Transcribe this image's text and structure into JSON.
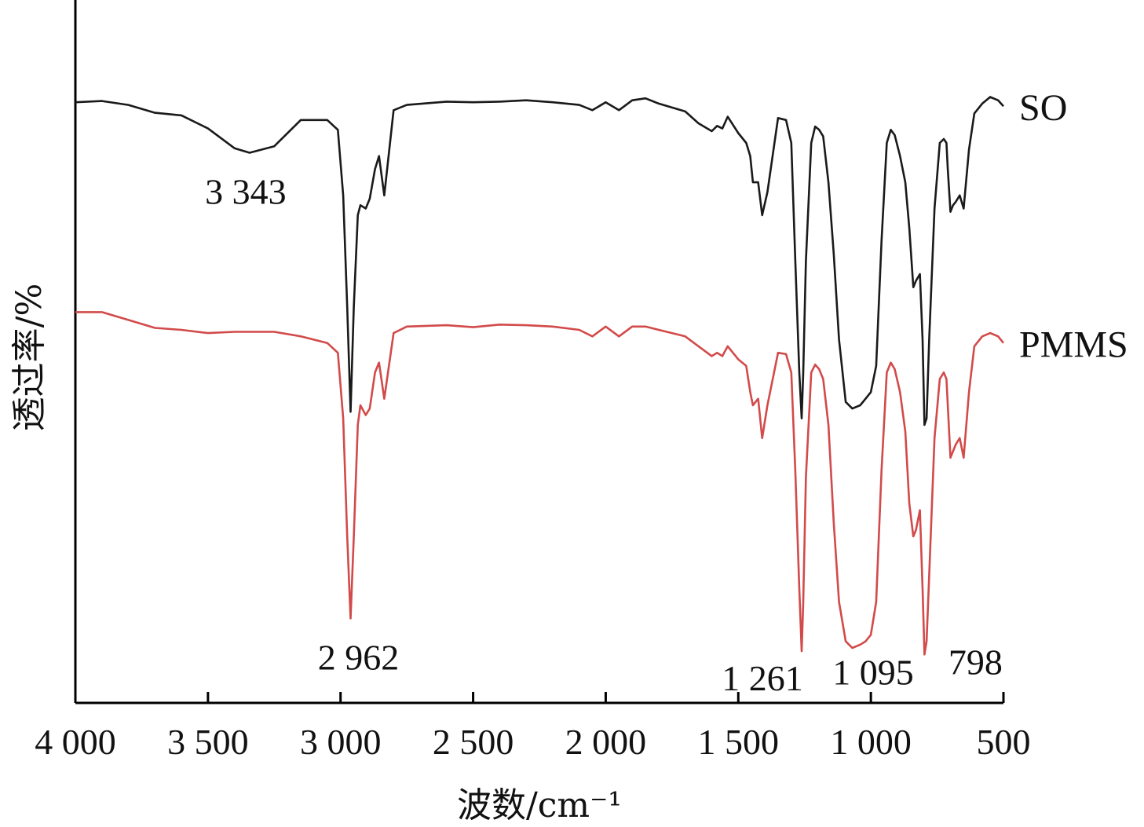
{
  "chart_data": {
    "type": "line",
    "xlabel": "波数/cm⁻¹",
    "ylabel": "透过率/%",
    "xlim": [
      4000,
      500
    ],
    "ylim": [
      0,
      1
    ],
    "x_reversed": true,
    "grid": false,
    "x_ticks": [
      4000,
      3500,
      3000,
      2500,
      2000,
      1500,
      1000,
      500
    ],
    "x_tick_labels": [
      "4 000",
      "3 500",
      "3 000",
      "2 500",
      "2 000",
      "1 500",
      "1 000",
      "500"
    ],
    "series": [
      {
        "name": "SO",
        "color": "#1a1a1a",
        "x": [
          4000,
          3900,
          3800,
          3700,
          3600,
          3500,
          3400,
          3343,
          3250,
          3150,
          3050,
          3010,
          2990,
          2975,
          2962,
          2950,
          2935,
          2925,
          2905,
          2890,
          2870,
          2855,
          2835,
          2800,
          2750,
          2600,
          2500,
          2400,
          2300,
          2200,
          2100,
          2050,
          2000,
          1950,
          1900,
          1850,
          1800,
          1700,
          1650,
          1600,
          1580,
          1560,
          1540,
          1500,
          1470,
          1455,
          1445,
          1425,
          1410,
          1390,
          1350,
          1320,
          1300,
          1285,
          1270,
          1261,
          1255,
          1245,
          1225,
          1210,
          1195,
          1180,
          1160,
          1140,
          1120,
          1095,
          1070,
          1040,
          1020,
          1000,
          980,
          960,
          940,
          925,
          910,
          890,
          870,
          855,
          840,
          830,
          815,
          805,
          798,
          790,
          780,
          760,
          740,
          725,
          715,
          710,
          700,
          690,
          680,
          665,
          650,
          630,
          610,
          580,
          550,
          520,
          500
        ],
        "y": [
          0.862,
          0.864,
          0.858,
          0.846,
          0.842,
          0.822,
          0.792,
          0.785,
          0.795,
          0.835,
          0.835,
          0.82,
          0.72,
          0.55,
          0.39,
          0.55,
          0.69,
          0.705,
          0.7,
          0.715,
          0.76,
          0.78,
          0.72,
          0.85,
          0.858,
          0.863,
          0.862,
          0.863,
          0.865,
          0.862,
          0.858,
          0.85,
          0.862,
          0.85,
          0.865,
          0.868,
          0.86,
          0.848,
          0.83,
          0.818,
          0.826,
          0.822,
          0.84,
          0.815,
          0.8,
          0.78,
          0.74,
          0.74,
          0.69,
          0.725,
          0.838,
          0.835,
          0.8,
          0.62,
          0.45,
          0.38,
          0.45,
          0.62,
          0.8,
          0.825,
          0.82,
          0.81,
          0.74,
          0.63,
          0.5,
          0.405,
          0.395,
          0.4,
          0.41,
          0.42,
          0.46,
          0.65,
          0.8,
          0.82,
          0.812,
          0.78,
          0.74,
          0.67,
          0.58,
          0.59,
          0.6,
          0.5,
          0.37,
          0.38,
          0.5,
          0.7,
          0.8,
          0.806,
          0.8,
          0.76,
          0.695,
          0.705,
          0.71,
          0.72,
          0.7,
          0.79,
          0.845,
          0.86,
          0.87,
          0.865,
          0.856
        ]
      },
      {
        "name": "PMMS",
        "color": "#d24a4a",
        "x": [
          4000,
          3900,
          3800,
          3700,
          3600,
          3500,
          3400,
          3343,
          3250,
          3150,
          3050,
          3010,
          2990,
          2975,
          2962,
          2950,
          2935,
          2925,
          2905,
          2890,
          2870,
          2855,
          2835,
          2800,
          2750,
          2600,
          2500,
          2400,
          2300,
          2200,
          2100,
          2050,
          2000,
          1950,
          1900,
          1850,
          1800,
          1700,
          1650,
          1600,
          1580,
          1560,
          1540,
          1500,
          1470,
          1455,
          1445,
          1425,
          1410,
          1390,
          1350,
          1320,
          1300,
          1285,
          1270,
          1261,
          1255,
          1245,
          1225,
          1210,
          1195,
          1180,
          1160,
          1140,
          1120,
          1095,
          1070,
          1040,
          1020,
          1000,
          980,
          960,
          940,
          925,
          910,
          890,
          870,
          855,
          840,
          830,
          815,
          805,
          798,
          790,
          780,
          760,
          740,
          725,
          715,
          710,
          700,
          690,
          680,
          665,
          650,
          630,
          610,
          580,
          550,
          520,
          500
        ],
        "y": [
          0.542,
          0.542,
          0.53,
          0.518,
          0.515,
          0.51,
          0.512,
          0.512,
          0.512,
          0.505,
          0.495,
          0.48,
          0.38,
          0.2,
          0.075,
          0.2,
          0.37,
          0.4,
          0.385,
          0.395,
          0.45,
          0.465,
          0.41,
          0.51,
          0.52,
          0.522,
          0.519,
          0.523,
          0.522,
          0.52,
          0.515,
          0.505,
          0.52,
          0.505,
          0.52,
          0.52,
          0.515,
          0.505,
          0.49,
          0.475,
          0.48,
          0.475,
          0.49,
          0.47,
          0.46,
          0.42,
          0.4,
          0.41,
          0.35,
          0.4,
          0.48,
          0.478,
          0.45,
          0.3,
          0.12,
          0.025,
          0.1,
          0.29,
          0.45,
          0.462,
          0.455,
          0.44,
          0.37,
          0.22,
          0.1,
          0.04,
          0.03,
          0.035,
          0.04,
          0.05,
          0.1,
          0.3,
          0.45,
          0.465,
          0.455,
          0.42,
          0.36,
          0.25,
          0.2,
          0.21,
          0.24,
          0.12,
          0.02,
          0.04,
          0.14,
          0.35,
          0.44,
          0.45,
          0.44,
          0.4,
          0.32,
          0.33,
          0.34,
          0.35,
          0.32,
          0.42,
          0.49,
          0.505,
          0.51,
          0.505,
          0.495
        ]
      }
    ],
    "annotations": [
      {
        "text": "3 343",
        "x": 3343,
        "series": "SO"
      },
      {
        "text": "2 962",
        "x": 2962,
        "series": "PMMS"
      },
      {
        "text": "1 261",
        "x": 1261,
        "series": "PMMS"
      },
      {
        "text": "1 095",
        "x": 1095,
        "series": "PMMS"
      },
      {
        "text": "798",
        "x": 798,
        "series": "PMMS"
      }
    ]
  }
}
